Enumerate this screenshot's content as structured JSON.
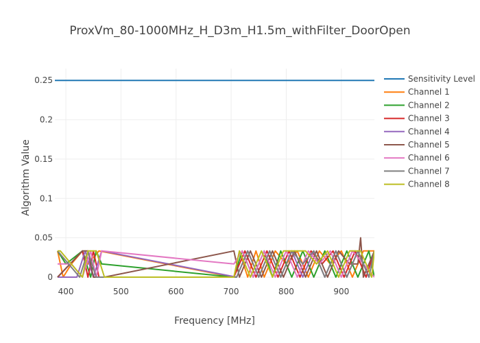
{
  "chart_data": {
    "type": "line",
    "title": "ProxVm_80-1000MHz_H_D3m_H1.5m_withFilter_DoorOpen",
    "xlabel": "Frequency [MHz]",
    "ylabel": "Algorithm Value",
    "xlim": [
      380,
      960
    ],
    "ylim": [
      0,
      0.265
    ],
    "x_ticks": [
      400,
      500,
      600,
      700,
      800,
      900
    ],
    "y_ticks": [
      0,
      0.05,
      0.1,
      0.15,
      0.2,
      0.25
    ],
    "y_tick_labels": [
      "0",
      "0.05",
      "0.1",
      "0.15",
      "0.2",
      "0.25"
    ],
    "grid": true,
    "legend_position": "right",
    "series": [
      {
        "name": "Sensitivity Level",
        "color": "#1f77b4",
        "x": [
          380,
          960
        ],
        "y": [
          0.25,
          0.25
        ]
      },
      {
        "name": "Channel 1",
        "color": "#ff7f0e",
        "x": [
          385,
          395,
          410,
          430,
          440,
          460,
          705,
          715,
          730,
          745,
          760,
          780,
          800,
          820,
          840,
          860,
          880,
          900,
          920,
          940,
          960
        ],
        "y": [
          0.0333,
          0,
          0.0167,
          0.0333,
          0.0167,
          0.0333,
          0,
          0.0333,
          0,
          0.0333,
          0,
          0.0333,
          0.0167,
          0.0333,
          0,
          0.0333,
          0.0167,
          0.0333,
          0,
          0.0333,
          0.0333
        ]
      },
      {
        "name": "Channel 2",
        "color": "#2ca02c",
        "x": [
          385,
          400,
          430,
          445,
          455,
          465,
          705,
          720,
          740,
          760,
          775,
          790,
          810,
          830,
          850,
          870,
          890,
          910,
          930,
          950,
          960
        ],
        "y": [
          0.0333,
          0.0167,
          0.0333,
          0,
          0.0333,
          0.0167,
          0,
          0.0333,
          0,
          0.0333,
          0,
          0.0333,
          0,
          0.0333,
          0,
          0.0333,
          0,
          0.0333,
          0,
          0.0333,
          0
        ]
      },
      {
        "name": "Channel 3",
        "color": "#d62728",
        "x": [
          385,
          430,
          440,
          450,
          460,
          705,
          725,
          745,
          765,
          785,
          805,
          825,
          845,
          865,
          885,
          905,
          925,
          945,
          960
        ],
        "y": [
          0,
          0.0333,
          0,
          0.0333,
          0,
          0,
          0.0333,
          0,
          0.0333,
          0,
          0.0333,
          0,
          0.0333,
          0.0167,
          0.0333,
          0,
          0.0333,
          0,
          0.0333
        ]
      },
      {
        "name": "Channel 4",
        "color": "#9467bd",
        "x": [
          385,
          420,
          435,
          450,
          465,
          710,
          730,
          750,
          770,
          790,
          810,
          830,
          850,
          870,
          890,
          910,
          930,
          950,
          960
        ],
        "y": [
          0,
          0,
          0.0333,
          0,
          0.0333,
          0,
          0.0333,
          0,
          0.0333,
          0,
          0.0333,
          0,
          0.0333,
          0,
          0.0333,
          0,
          0.0333,
          0,
          0.0333
        ]
      },
      {
        "name": "Channel 5",
        "color": "#8c564b",
        "x": [
          385,
          430,
          440,
          450,
          470,
          705,
          715,
          735,
          755,
          775,
          795,
          815,
          835,
          855,
          875,
          895,
          915,
          930,
          935,
          940,
          960
        ],
        "y": [
          0,
          0.0333,
          0.0333,
          0,
          0,
          0.0333,
          0,
          0.0333,
          0,
          0.0333,
          0,
          0.0333,
          0,
          0.0333,
          0,
          0.0333,
          0.0167,
          0.0167,
          0.05,
          0,
          0.0333
        ]
      },
      {
        "name": "Channel 6",
        "color": "#e377c2",
        "x": [
          385,
          410,
          430,
          445,
          455,
          465,
          705,
          720,
          740,
          760,
          780,
          800,
          820,
          840,
          860,
          880,
          900,
          920,
          940,
          960
        ],
        "y": [
          0.0167,
          0.0167,
          0,
          0.0333,
          0,
          0.0333,
          0.0167,
          0.0333,
          0,
          0.0333,
          0,
          0.0333,
          0,
          0.0333,
          0.0167,
          0.0333,
          0,
          0.0333,
          0.0167,
          0
        ]
      },
      {
        "name": "Channel 7",
        "color": "#7f7f7f",
        "x": [
          385,
          425,
          440,
          455,
          470,
          710,
          730,
          750,
          770,
          790,
          810,
          830,
          850,
          870,
          890,
          910,
          930,
          950,
          960
        ],
        "y": [
          0.0333,
          0,
          0.0333,
          0,
          0,
          0,
          0.0333,
          0,
          0.0333,
          0,
          0.0333,
          0.0167,
          0.0333,
          0,
          0.0333,
          0,
          0.0333,
          0,
          0.0333
        ]
      },
      {
        "name": "Channel 8",
        "color": "#bcbd22",
        "x": [
          385,
          390,
          430,
          440,
          455,
          470,
          705,
          715,
          735,
          755,
          775,
          795,
          815,
          835,
          855,
          875,
          895,
          915,
          935,
          955,
          960
        ],
        "y": [
          0.0333,
          0.0333,
          0,
          0.0333,
          0.0333,
          0,
          0,
          0.0333,
          0,
          0.0333,
          0,
          0.0333,
          0.0333,
          0.0333,
          0.0167,
          0.0333,
          0,
          0.0333,
          0.0333,
          0,
          0.0333
        ]
      }
    ]
  }
}
